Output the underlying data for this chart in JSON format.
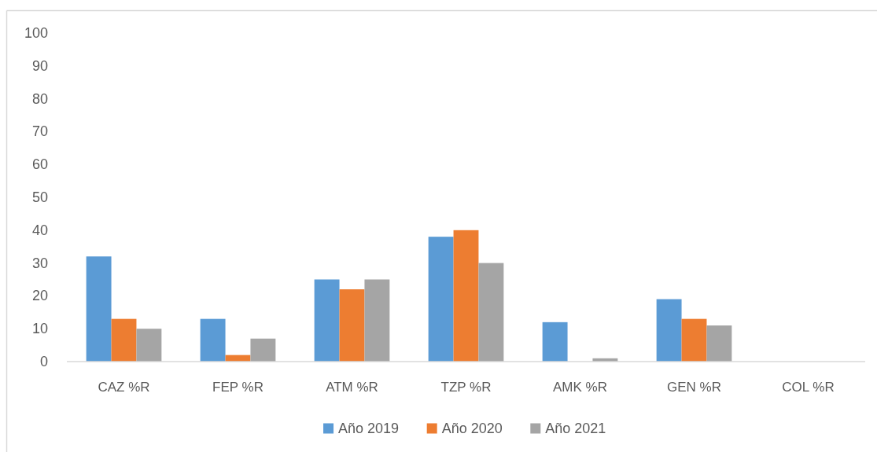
{
  "chart_data": {
    "type": "bar",
    "categories": [
      "CAZ %R",
      "FEP %R",
      "ATM %R",
      "TZP %R",
      "AMK %R",
      "GEN %R",
      "COL %R"
    ],
    "series": [
      {
        "name": "Año 2019",
        "color": "#5b9bd5",
        "values": [
          32,
          13,
          25,
          38,
          12,
          19,
          0
        ]
      },
      {
        "name": "Año 2020",
        "color": "#ed7d31",
        "values": [
          13,
          2,
          22,
          40,
          0,
          13,
          0
        ]
      },
      {
        "name": "Año 2021",
        "color": "#a5a5a5",
        "values": [
          10,
          7,
          25,
          30,
          1,
          11,
          0
        ]
      }
    ],
    "ylim": [
      0,
      100
    ],
    "yticks": [
      0,
      10,
      20,
      30,
      40,
      50,
      60,
      70,
      80,
      90,
      100
    ],
    "legend": "bottom"
  }
}
